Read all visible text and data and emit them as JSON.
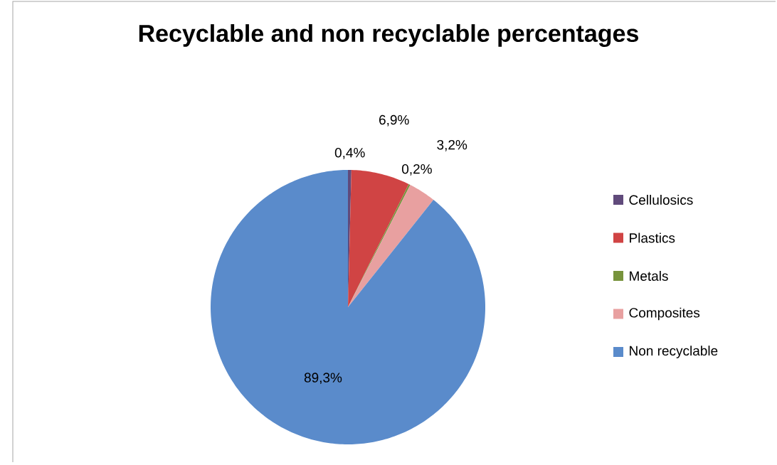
{
  "chart_data": {
    "type": "pie",
    "title": "Recyclable and non recyclable percentages",
    "categories": [
      "Cellulosics",
      "Plastics",
      "Metals",
      "Composites",
      "Non recyclable"
    ],
    "values": [
      0.4,
      6.9,
      0.2,
      3.2,
      89.3
    ],
    "colors": [
      "#604a7b",
      "#d04444",
      "#77933c",
      "#e8a0a0",
      "#5a8bcb"
    ],
    "value_labels": [
      "0,4%",
      "6,9%",
      "0,2%",
      "3,2%",
      "89,3%"
    ],
    "legend": "right"
  }
}
